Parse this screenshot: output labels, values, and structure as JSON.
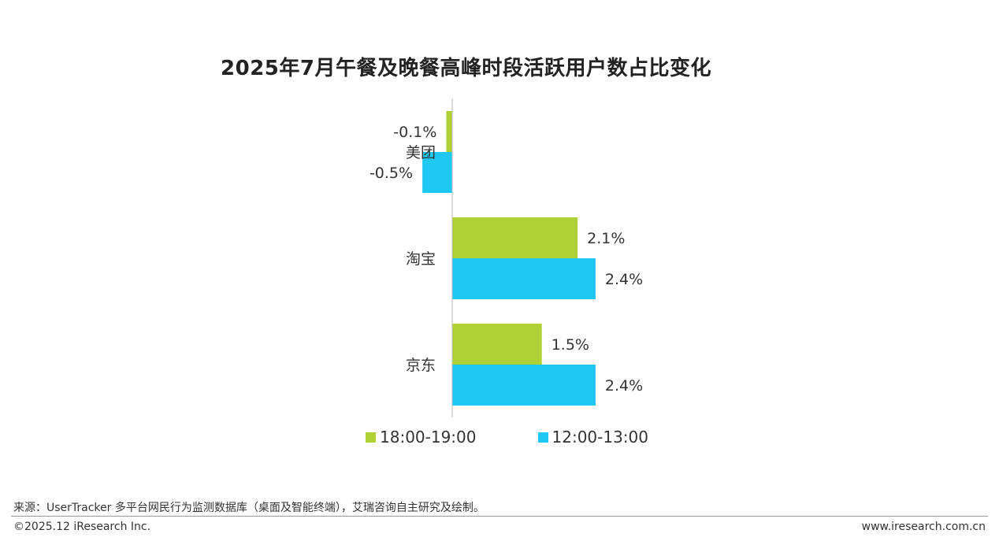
{
  "chart_data": {
    "type": "bar",
    "orientation": "horizontal",
    "title": "2025年7月午餐及晚餐高峰时段活跃用户数占比变化",
    "categories": [
      "美团",
      "淘宝",
      "京东"
    ],
    "series": [
      {
        "name": "18:00-19:00",
        "color": "#b0d135",
        "values": [
          -0.1,
          2.1,
          1.5
        ],
        "labels": [
          "-0.1%",
          "2.1%",
          "1.5%"
        ]
      },
      {
        "name": "12:00-13:00",
        "color": "#1ec8f3",
        "values": [
          -0.5,
          2.4,
          2.4
        ],
        "labels": [
          "-0.5%",
          "2.4%",
          "2.4%"
        ]
      }
    ],
    "unit": "%",
    "legend_position": "bottom",
    "grid": false
  },
  "footer": {
    "source": "来源：UserTracker 多平台网民行为监测数据库（桌面及智能终端），艾瑞咨询自主研究及绘制。",
    "copyright": "©2025.12 iResearch Inc.",
    "url": "www.iresearch.com.cn"
  }
}
